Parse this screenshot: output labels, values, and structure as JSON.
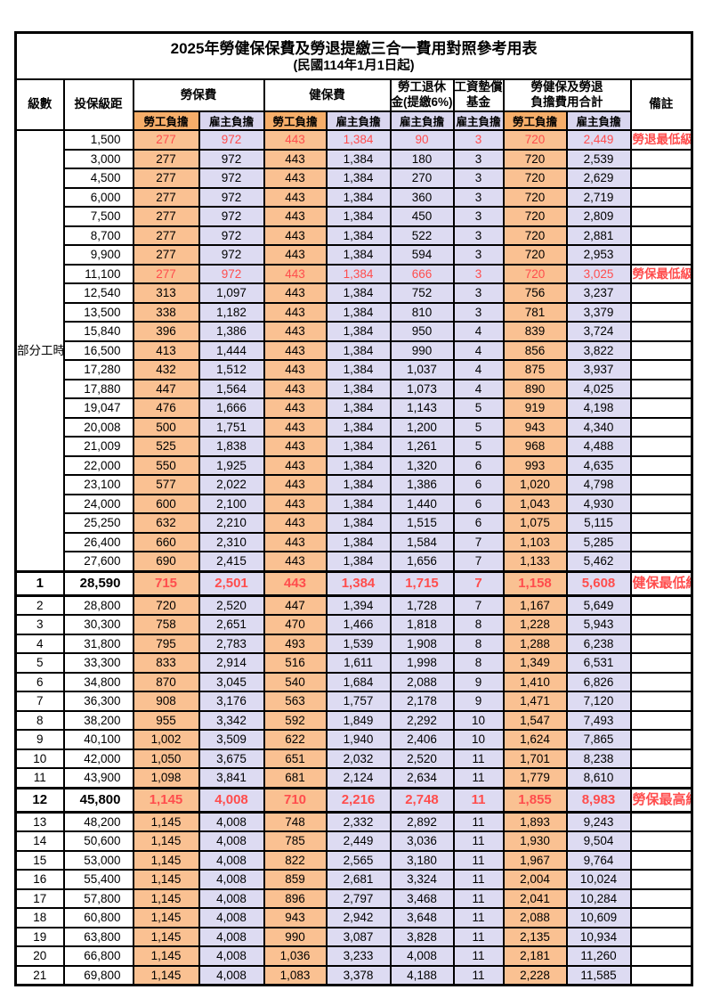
{
  "title": "2025年勞健保保費及勞退提繳三合一費用對照參考用表",
  "subtitle": "(民國114年1月1日起)",
  "colors": {
    "employee_fill": "#FAC192",
    "employer_fill": "#DDDBF2",
    "employee_header_fill": "#F6AE6A",
    "employer_header_fill": "#D9D6EF",
    "highlight_text": "#FF4D4D",
    "grid": "#000000"
  },
  "header": {
    "level": "級數",
    "bracket": "投保級距",
    "labor_ins": "勞保費",
    "health_ins": "健保費",
    "pension_l1": "勞工退休",
    "pension_l2": "金(提繳6%)",
    "wage_fund_l1": "工資墊償",
    "wage_fund_l2": "基金",
    "total_l1": "勞健保及勞退",
    "total_l2": "負擔費用合計",
    "remark": "備註",
    "employee": "勞工負擔",
    "employer": "雇主負擔"
  },
  "rows": [
    {
      "level": "部分工時",
      "level_rowspan": 23,
      "bracket": "1,500",
      "labor_emp": "277",
      "labor_er": "972",
      "health_emp": "443",
      "health_er": "1,384",
      "pension_er": "90",
      "wage_er": "3",
      "total_emp": "720",
      "total_er": "2,449",
      "remark": "勞退最低級距",
      "red": true,
      "big": false
    },
    {
      "level": null,
      "bracket": "3,000",
      "labor_emp": "277",
      "labor_er": "972",
      "health_emp": "443",
      "health_er": "1,384",
      "pension_er": "180",
      "wage_er": "3",
      "total_emp": "720",
      "total_er": "2,539",
      "remark": "",
      "red": false,
      "big": false
    },
    {
      "level": null,
      "bracket": "4,500",
      "labor_emp": "277",
      "labor_er": "972",
      "health_emp": "443",
      "health_er": "1,384",
      "pension_er": "270",
      "wage_er": "3",
      "total_emp": "720",
      "total_er": "2,629",
      "remark": "",
      "red": false,
      "big": false
    },
    {
      "level": null,
      "bracket": "6,000",
      "labor_emp": "277",
      "labor_er": "972",
      "health_emp": "443",
      "health_er": "1,384",
      "pension_er": "360",
      "wage_er": "3",
      "total_emp": "720",
      "total_er": "2,719",
      "remark": "",
      "red": false,
      "big": false
    },
    {
      "level": null,
      "bracket": "7,500",
      "labor_emp": "277",
      "labor_er": "972",
      "health_emp": "443",
      "health_er": "1,384",
      "pension_er": "450",
      "wage_er": "3",
      "total_emp": "720",
      "total_er": "2,809",
      "remark": "",
      "red": false,
      "big": false
    },
    {
      "level": null,
      "bracket": "8,700",
      "labor_emp": "277",
      "labor_er": "972",
      "health_emp": "443",
      "health_er": "1,384",
      "pension_er": "522",
      "wage_er": "3",
      "total_emp": "720",
      "total_er": "2,881",
      "remark": "",
      "red": false,
      "big": false
    },
    {
      "level": null,
      "bracket": "9,900",
      "labor_emp": "277",
      "labor_er": "972",
      "health_emp": "443",
      "health_er": "1,384",
      "pension_er": "594",
      "wage_er": "3",
      "total_emp": "720",
      "total_er": "2,953",
      "remark": "",
      "red": false,
      "big": false
    },
    {
      "level": null,
      "bracket": "11,100",
      "labor_emp": "277",
      "labor_er": "972",
      "health_emp": "443",
      "health_er": "1,384",
      "pension_er": "666",
      "wage_er": "3",
      "total_emp": "720",
      "total_er": "3,025",
      "remark": "勞保最低級距",
      "red": true,
      "big": false
    },
    {
      "level": null,
      "bracket": "12,540",
      "labor_emp": "313",
      "labor_er": "1,097",
      "health_emp": "443",
      "health_er": "1,384",
      "pension_er": "752",
      "wage_er": "3",
      "total_emp": "756",
      "total_er": "3,237",
      "remark": "",
      "red": false,
      "big": false
    },
    {
      "level": null,
      "bracket": "13,500",
      "labor_emp": "338",
      "labor_er": "1,182",
      "health_emp": "443",
      "health_er": "1,384",
      "pension_er": "810",
      "wage_er": "3",
      "total_emp": "781",
      "total_er": "3,379",
      "remark": "",
      "red": false,
      "big": false
    },
    {
      "level": null,
      "bracket": "15,840",
      "labor_emp": "396",
      "labor_er": "1,386",
      "health_emp": "443",
      "health_er": "1,384",
      "pension_er": "950",
      "wage_er": "4",
      "total_emp": "839",
      "total_er": "3,724",
      "remark": "",
      "red": false,
      "big": false
    },
    {
      "level": null,
      "bracket": "16,500",
      "labor_emp": "413",
      "labor_er": "1,444",
      "health_emp": "443",
      "health_er": "1,384",
      "pension_er": "990",
      "wage_er": "4",
      "total_emp": "856",
      "total_er": "3,822",
      "remark": "",
      "red": false,
      "big": false
    },
    {
      "level": null,
      "bracket": "17,280",
      "labor_emp": "432",
      "labor_er": "1,512",
      "health_emp": "443",
      "health_er": "1,384",
      "pension_er": "1,037",
      "wage_er": "4",
      "total_emp": "875",
      "total_er": "3,937",
      "remark": "",
      "red": false,
      "big": false
    },
    {
      "level": null,
      "bracket": "17,880",
      "labor_emp": "447",
      "labor_er": "1,564",
      "health_emp": "443",
      "health_er": "1,384",
      "pension_er": "1,073",
      "wage_er": "4",
      "total_emp": "890",
      "total_er": "4,025",
      "remark": "",
      "red": false,
      "big": false
    },
    {
      "level": null,
      "bracket": "19,047",
      "labor_emp": "476",
      "labor_er": "1,666",
      "health_emp": "443",
      "health_er": "1,384",
      "pension_er": "1,143",
      "wage_er": "5",
      "total_emp": "919",
      "total_er": "4,198",
      "remark": "",
      "red": false,
      "big": false
    },
    {
      "level": null,
      "bracket": "20,008",
      "labor_emp": "500",
      "labor_er": "1,751",
      "health_emp": "443",
      "health_er": "1,384",
      "pension_er": "1,200",
      "wage_er": "5",
      "total_emp": "943",
      "total_er": "4,340",
      "remark": "",
      "red": false,
      "big": false
    },
    {
      "level": null,
      "bracket": "21,009",
      "labor_emp": "525",
      "labor_er": "1,838",
      "health_emp": "443",
      "health_er": "1,384",
      "pension_er": "1,261",
      "wage_er": "5",
      "total_emp": "968",
      "total_er": "4,488",
      "remark": "",
      "red": false,
      "big": false
    },
    {
      "level": null,
      "bracket": "22,000",
      "labor_emp": "550",
      "labor_er": "1,925",
      "health_emp": "443",
      "health_er": "1,384",
      "pension_er": "1,320",
      "wage_er": "6",
      "total_emp": "993",
      "total_er": "4,635",
      "remark": "",
      "red": false,
      "big": false
    },
    {
      "level": null,
      "bracket": "23,100",
      "labor_emp": "577",
      "labor_er": "2,022",
      "health_emp": "443",
      "health_er": "1,384",
      "pension_er": "1,386",
      "wage_er": "6",
      "total_emp": "1,020",
      "total_er": "4,798",
      "remark": "",
      "red": false,
      "big": false
    },
    {
      "level": null,
      "bracket": "24,000",
      "labor_emp": "600",
      "labor_er": "2,100",
      "health_emp": "443",
      "health_er": "1,384",
      "pension_er": "1,440",
      "wage_er": "6",
      "total_emp": "1,043",
      "total_er": "4,930",
      "remark": "",
      "red": false,
      "big": false
    },
    {
      "level": null,
      "bracket": "25,250",
      "labor_emp": "632",
      "labor_er": "2,210",
      "health_emp": "443",
      "health_er": "1,384",
      "pension_er": "1,515",
      "wage_er": "6",
      "total_emp": "1,075",
      "total_er": "5,115",
      "remark": "",
      "red": false,
      "big": false
    },
    {
      "level": null,
      "bracket": "26,400",
      "labor_emp": "660",
      "labor_er": "2,310",
      "health_emp": "443",
      "health_er": "1,384",
      "pension_er": "1,584",
      "wage_er": "7",
      "total_emp": "1,103",
      "total_er": "5,285",
      "remark": "",
      "red": false,
      "big": false
    },
    {
      "level": null,
      "bracket": "27,600",
      "labor_emp": "690",
      "labor_er": "2,415",
      "health_emp": "443",
      "health_er": "1,384",
      "pension_er": "1,656",
      "wage_er": "7",
      "total_emp": "1,133",
      "total_er": "5,462",
      "remark": "",
      "red": false,
      "big": false
    },
    {
      "level": "1",
      "bracket": "28,590",
      "labor_emp": "715",
      "labor_er": "2,501",
      "health_emp": "443",
      "health_er": "1,384",
      "pension_er": "1,715",
      "wage_er": "7",
      "total_emp": "1,158",
      "total_er": "5,608",
      "remark": "健保最低級距",
      "red": true,
      "big": true
    },
    {
      "level": "2",
      "bracket": "28,800",
      "labor_emp": "720",
      "labor_er": "2,520",
      "health_emp": "447",
      "health_er": "1,394",
      "pension_er": "1,728",
      "wage_er": "7",
      "total_emp": "1,167",
      "total_er": "5,649",
      "remark": "",
      "red": false,
      "big": false
    },
    {
      "level": "3",
      "bracket": "30,300",
      "labor_emp": "758",
      "labor_er": "2,651",
      "health_emp": "470",
      "health_er": "1,466",
      "pension_er": "1,818",
      "wage_er": "8",
      "total_emp": "1,228",
      "total_er": "5,943",
      "remark": "",
      "red": false,
      "big": false
    },
    {
      "level": "4",
      "bracket": "31,800",
      "labor_emp": "795",
      "labor_er": "2,783",
      "health_emp": "493",
      "health_er": "1,539",
      "pension_er": "1,908",
      "wage_er": "8",
      "total_emp": "1,288",
      "total_er": "6,238",
      "remark": "",
      "red": false,
      "big": false
    },
    {
      "level": "5",
      "bracket": "33,300",
      "labor_emp": "833",
      "labor_er": "2,914",
      "health_emp": "516",
      "health_er": "1,611",
      "pension_er": "1,998",
      "wage_er": "8",
      "total_emp": "1,349",
      "total_er": "6,531",
      "remark": "",
      "red": false,
      "big": false
    },
    {
      "level": "6",
      "bracket": "34,800",
      "labor_emp": "870",
      "labor_er": "3,045",
      "health_emp": "540",
      "health_er": "1,684",
      "pension_er": "2,088",
      "wage_er": "9",
      "total_emp": "1,410",
      "total_er": "6,826",
      "remark": "",
      "red": false,
      "big": false
    },
    {
      "level": "7",
      "bracket": "36,300",
      "labor_emp": "908",
      "labor_er": "3,176",
      "health_emp": "563",
      "health_er": "1,757",
      "pension_er": "2,178",
      "wage_er": "9",
      "total_emp": "1,471",
      "total_er": "7,120",
      "remark": "",
      "red": false,
      "big": false
    },
    {
      "level": "8",
      "bracket": "38,200",
      "labor_emp": "955",
      "labor_er": "3,342",
      "health_emp": "592",
      "health_er": "1,849",
      "pension_er": "2,292",
      "wage_er": "10",
      "total_emp": "1,547",
      "total_er": "7,493",
      "remark": "",
      "red": false,
      "big": false
    },
    {
      "level": "9",
      "bracket": "40,100",
      "labor_emp": "1,002",
      "labor_er": "3,509",
      "health_emp": "622",
      "health_er": "1,940",
      "pension_er": "2,406",
      "wage_er": "10",
      "total_emp": "1,624",
      "total_er": "7,865",
      "remark": "",
      "red": false,
      "big": false
    },
    {
      "level": "10",
      "bracket": "42,000",
      "labor_emp": "1,050",
      "labor_er": "3,675",
      "health_emp": "651",
      "health_er": "2,032",
      "pension_er": "2,520",
      "wage_er": "11",
      "total_emp": "1,701",
      "total_er": "8,238",
      "remark": "",
      "red": false,
      "big": false
    },
    {
      "level": "11",
      "bracket": "43,900",
      "labor_emp": "1,098",
      "labor_er": "3,841",
      "health_emp": "681",
      "health_er": "2,124",
      "pension_er": "2,634",
      "wage_er": "11",
      "total_emp": "1,779",
      "total_er": "8,610",
      "remark": "",
      "red": false,
      "big": false
    },
    {
      "level": "12",
      "bracket": "45,800",
      "labor_emp": "1,145",
      "labor_er": "4,008",
      "health_emp": "710",
      "health_er": "2,216",
      "pension_er": "2,748",
      "wage_er": "11",
      "total_emp": "1,855",
      "total_er": "8,983",
      "remark": "勞保最高級距",
      "red": true,
      "big": true
    },
    {
      "level": "13",
      "bracket": "48,200",
      "labor_emp": "1,145",
      "labor_er": "4,008",
      "health_emp": "748",
      "health_er": "2,332",
      "pension_er": "2,892",
      "wage_er": "11",
      "total_emp": "1,893",
      "total_er": "9,243",
      "remark": "",
      "red": false,
      "big": false
    },
    {
      "level": "14",
      "bracket": "50,600",
      "labor_emp": "1,145",
      "labor_er": "4,008",
      "health_emp": "785",
      "health_er": "2,449",
      "pension_er": "3,036",
      "wage_er": "11",
      "total_emp": "1,930",
      "total_er": "9,504",
      "remark": "",
      "red": false,
      "big": false
    },
    {
      "level": "15",
      "bracket": "53,000",
      "labor_emp": "1,145",
      "labor_er": "4,008",
      "health_emp": "822",
      "health_er": "2,565",
      "pension_er": "3,180",
      "wage_er": "11",
      "total_emp": "1,967",
      "total_er": "9,764",
      "remark": "",
      "red": false,
      "big": false
    },
    {
      "level": "16",
      "bracket": "55,400",
      "labor_emp": "1,145",
      "labor_er": "4,008",
      "health_emp": "859",
      "health_er": "2,681",
      "pension_er": "3,324",
      "wage_er": "11",
      "total_emp": "2,004",
      "total_er": "10,024",
      "remark": "",
      "red": false,
      "big": false
    },
    {
      "level": "17",
      "bracket": "57,800",
      "labor_emp": "1,145",
      "labor_er": "4,008",
      "health_emp": "896",
      "health_er": "2,797",
      "pension_er": "3,468",
      "wage_er": "11",
      "total_emp": "2,041",
      "total_er": "10,284",
      "remark": "",
      "red": false,
      "big": false
    },
    {
      "level": "18",
      "bracket": "60,800",
      "labor_emp": "1,145",
      "labor_er": "4,008",
      "health_emp": "943",
      "health_er": "2,942",
      "pension_er": "3,648",
      "wage_er": "11",
      "total_emp": "2,088",
      "total_er": "10,609",
      "remark": "",
      "red": false,
      "big": false
    },
    {
      "level": "19",
      "bracket": "63,800",
      "labor_emp": "1,145",
      "labor_er": "4,008",
      "health_emp": "990",
      "health_er": "3,087",
      "pension_er": "3,828",
      "wage_er": "11",
      "total_emp": "2,135",
      "total_er": "10,934",
      "remark": "",
      "red": false,
      "big": false
    },
    {
      "level": "20",
      "bracket": "66,800",
      "labor_emp": "1,145",
      "labor_er": "4,008",
      "health_emp": "1,036",
      "health_er": "3,233",
      "pension_er": "4,008",
      "wage_er": "11",
      "total_emp": "2,181",
      "total_er": "11,260",
      "remark": "",
      "red": false,
      "big": false
    },
    {
      "level": "21",
      "bracket": "69,800",
      "labor_emp": "1,145",
      "labor_er": "4,008",
      "health_emp": "1,083",
      "health_er": "3,378",
      "pension_er": "4,188",
      "wage_er": "11",
      "total_emp": "2,228",
      "total_er": "11,585",
      "remark": "",
      "red": false,
      "big": false
    }
  ]
}
